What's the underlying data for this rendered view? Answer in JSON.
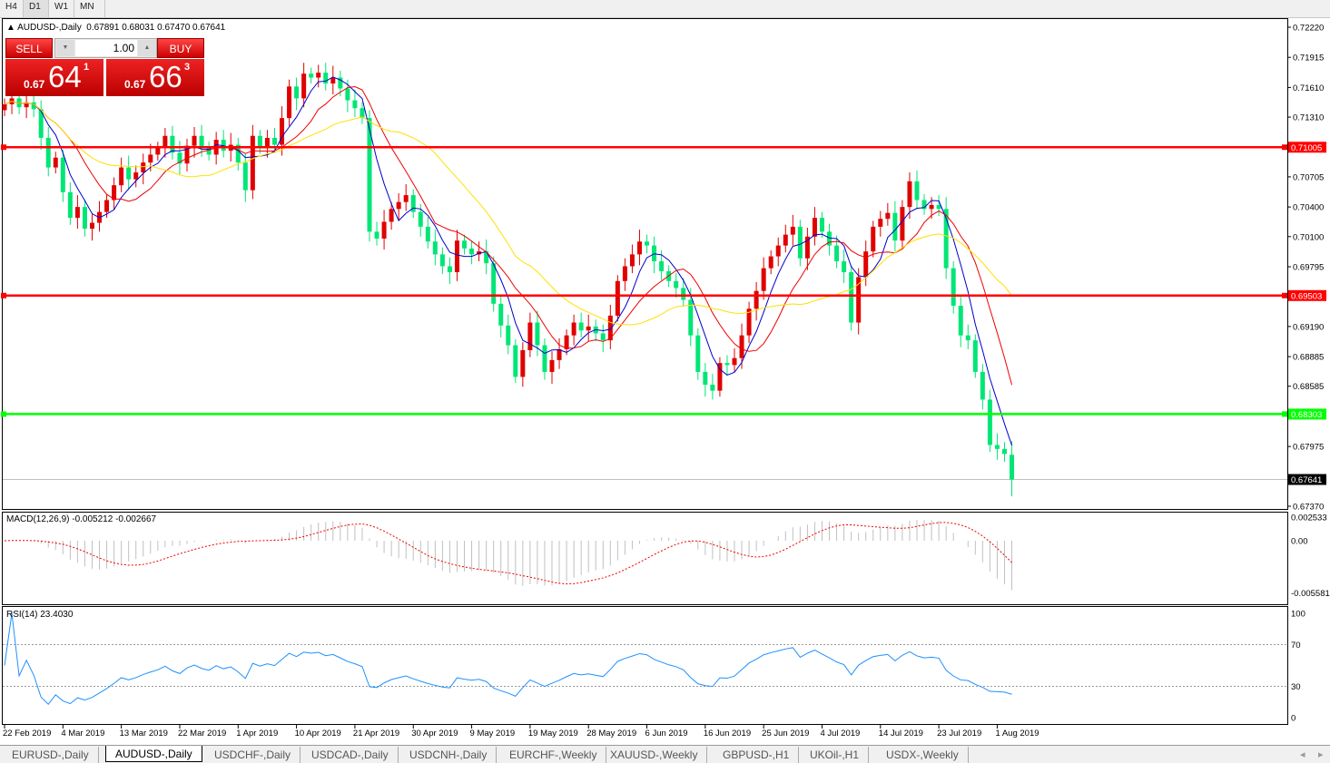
{
  "timeframes": [
    "H4",
    "D1",
    "W1",
    "MN"
  ],
  "active_timeframe": "D1",
  "chart_header": {
    "symbol": "AUDUSD-,Daily",
    "ohlc": "0.67891 0.68031 0.67470 0.67641"
  },
  "trade_panel": {
    "sell_label": "SELL",
    "buy_label": "BUY",
    "volume": "1.00",
    "sell_prefix": "0.67",
    "sell_big": "64",
    "sell_pip": "1",
    "buy_prefix": "0.67",
    "buy_big": "66",
    "buy_pip": "3"
  },
  "macd_label": "MACD(12,26,9) -0.005212 -0.002667",
  "rsi_label": "RSI(14) 23.4030",
  "tabs": [
    "EURUSD-,Daily",
    "AUDUSD-,Daily",
    "USDCHF-,Daily",
    "USDCAD-,Daily",
    "USDCNH-,Daily",
    "EURCHF-,Weekly",
    "XAUUSD-,Weekly",
    "GBPUSD-,H1",
    "UKOil-,H1",
    "USDX-,Weekly"
  ],
  "active_tab": "AUDUSD-,Daily",
  "colors": {
    "bull": "#e00000",
    "bear": "#00e676",
    "ma_fast": "#0000cc",
    "ma_mid": "#ee0000",
    "ma_slow": "#ffe000",
    "level_red": "#ff0000",
    "level_green": "#00ff00",
    "rsi": "#1e90ff",
    "macd_hist": "#c0c0c0",
    "macd_signal": "#ee0000"
  },
  "chart_data": {
    "type": "candlestick",
    "symbol": "AUDUSD-",
    "timeframe": "Daily",
    "ylim": [
      0.6737,
      0.7222
    ],
    "y_ticks": [
      "0.72220",
      "0.71915",
      "0.71610",
      "0.71310",
      "0.70705",
      "0.70400",
      "0.70100",
      "0.69795",
      "0.69190",
      "0.68885",
      "0.68585",
      "0.67975",
      "0.67370"
    ],
    "x_ticks": [
      "22 Feb 2019",
      "4 Mar 2019",
      "13 Mar 2019",
      "22 Mar 2019",
      "1 Apr 2019",
      "10 Apr 2019",
      "21 Apr 2019",
      "30 Apr 2019",
      "9 May 2019",
      "19 May 2019",
      "28 May 2019",
      "6 Jun 2019",
      "16 Jun 2019",
      "25 Jun 2019",
      "4 Jul 2019",
      "14 Jul 2019",
      "23 Jul 2019",
      "1 Aug 2019"
    ],
    "last_bar": {
      "open": 0.67891,
      "high": 0.68031,
      "low": 0.6747,
      "close": 0.67641
    },
    "closes": [
      0.7144,
      0.715,
      0.7141,
      0.7146,
      0.7139,
      0.711,
      0.708,
      0.709,
      0.7055,
      0.7029,
      0.704,
      0.7018,
      0.7024,
      0.7035,
      0.7047,
      0.7062,
      0.708,
      0.7068,
      0.7075,
      0.7085,
      0.7093,
      0.71,
      0.7112,
      0.7095,
      0.7084,
      0.7102,
      0.7112,
      0.71,
      0.7093,
      0.7108,
      0.7097,
      0.7103,
      0.7085,
      0.7057,
      0.7112,
      0.71,
      0.711,
      0.7103,
      0.713,
      0.7162,
      0.715,
      0.7175,
      0.7171,
      0.7176,
      0.7165,
      0.7171,
      0.716,
      0.7148,
      0.714,
      0.713,
      0.7015,
      0.7008,
      0.7025,
      0.7038,
      0.7045,
      0.7052,
      0.7035,
      0.702,
      0.7005,
      0.6992,
      0.698,
      0.6974,
      0.7006,
      0.6998,
      0.6992,
      0.6995,
      0.6983,
      0.6942,
      0.692,
      0.69,
      0.6868,
      0.6895,
      0.6923,
      0.69,
      0.6873,
      0.6885,
      0.6896,
      0.691,
      0.6923,
      0.6915,
      0.6919,
      0.6912,
      0.6905,
      0.693,
      0.6965,
      0.698,
      0.6992,
      0.7005,
      0.7001,
      0.6985,
      0.6975,
      0.6965,
      0.6958,
      0.6946,
      0.691,
      0.6873,
      0.686,
      0.6854,
      0.6882,
      0.688,
      0.6887,
      0.691,
      0.6937,
      0.6955,
      0.6978,
      0.699,
      0.7001,
      0.7012,
      0.702,
      0.6988,
      0.701,
      0.7029,
      0.7015,
      0.7001,
      0.6985,
      0.6974,
      0.6923,
      0.6969,
      0.6995,
      0.702,
      0.7028,
      0.7034,
      0.7006,
      0.704,
      0.7066,
      0.7047,
      0.7038,
      0.7042,
      0.7038,
      0.6978,
      0.694,
      0.691,
      0.6905,
      0.6873,
      0.6845,
      0.6799,
      0.6795,
      0.679,
      0.67641
    ],
    "moving_averages": [
      {
        "period": 5,
        "color": "#0000cc"
      },
      {
        "period": 10,
        "color": "#ee0000"
      },
      {
        "period": 21,
        "color": "#ffe000"
      }
    ],
    "levels": [
      {
        "value": "0.71005",
        "color": "#ff0000"
      },
      {
        "value": "0.69503",
        "color": "#ff0000"
      },
      {
        "value": "0.68303",
        "color": "#00ff00"
      }
    ],
    "bid_line": "0.67641",
    "macd": {
      "ylim": [
        -0.005581,
        0.002533
      ],
      "ticks": [
        "0.002533",
        "0.00",
        "-0.005581"
      ]
    },
    "rsi": {
      "ticks": [
        "100",
        "70",
        "30",
        "0"
      ],
      "levels": [
        70,
        30
      ]
    }
  }
}
